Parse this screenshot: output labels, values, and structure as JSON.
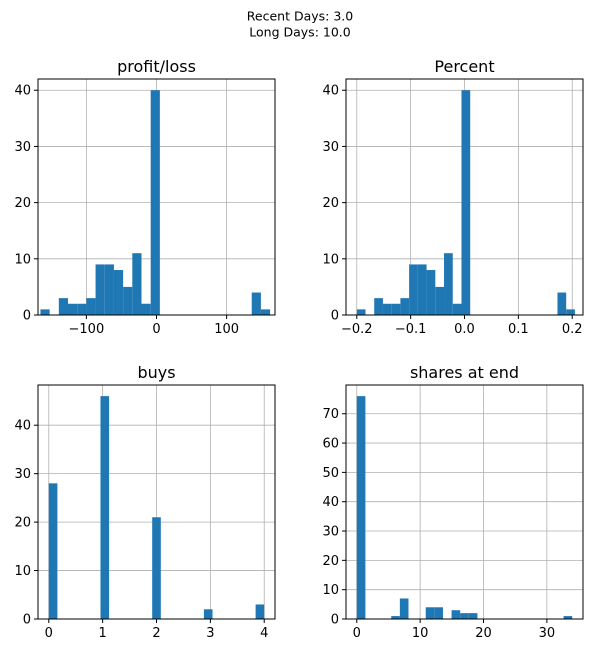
{
  "figure": {
    "suptitle_line1": "Recent Days: 3.0",
    "suptitle_line2": "Long Days: 10.0"
  },
  "colors": {
    "bar": "#1f77b4",
    "grid": "#b0b0b0",
    "axes": "#000000"
  },
  "chart_data": [
    {
      "type": "bar",
      "title": "profit/loss",
      "grid": true,
      "xlim": [
        -169,
        169
      ],
      "ylim": [
        0,
        42
      ],
      "xticks": [
        -100,
        0,
        100
      ],
      "xtick_labels": [
        "−100",
        "0",
        "100"
      ],
      "yticks": [
        0,
        10,
        20,
        30,
        40
      ],
      "ytick_labels": [
        "0",
        "10",
        "20",
        "30",
        "40"
      ],
      "bin_edges": [
        -165.5,
        -152.4,
        -139.3,
        -126.2,
        -113.1,
        -100.0,
        -86.9,
        -73.8,
        -60.7,
        -47.6,
        -34.5,
        -21.4,
        -8.3,
        4.8,
        17.9,
        31.0,
        44.1,
        57.2,
        70.3,
        83.4,
        96.5,
        109.6,
        122.7,
        135.8,
        148.9,
        162.0
      ],
      "counts": [
        1,
        0,
        3,
        2,
        2,
        3,
        9,
        9,
        8,
        5,
        11,
        2,
        40,
        0,
        0,
        0,
        0,
        0,
        0,
        0,
        0,
        0,
        0,
        4,
        1
      ]
    },
    {
      "type": "bar",
      "title": "Percent",
      "grid": true,
      "xlim": [
        -0.22,
        0.22
      ],
      "ylim": [
        0,
        42
      ],
      "xticks": [
        -0.2,
        -0.1,
        0.0,
        0.1,
        0.2
      ],
      "xtick_labels": [
        "−0.2",
        "−0.1",
        "0.0",
        "0.1",
        "0.2"
      ],
      "yticks": [
        0,
        10,
        20,
        30,
        40
      ],
      "ytick_labels": [
        "0",
        "10",
        "20",
        "30",
        "40"
      ],
      "bin_edges": [
        -0.2,
        -0.1838,
        -0.1676,
        -0.1514,
        -0.1352,
        -0.119,
        -0.1028,
        -0.0866,
        -0.0704,
        -0.0542,
        -0.038,
        -0.0218,
        -0.0056,
        0.0106,
        0.0268,
        0.043,
        0.0592,
        0.0754,
        0.0916,
        0.1078,
        0.124,
        0.1402,
        0.1564,
        0.1726,
        0.1888,
        0.205
      ],
      "counts": [
        1,
        0,
        3,
        2,
        2,
        3,
        9,
        9,
        8,
        5,
        11,
        2,
        40,
        0,
        0,
        0,
        0,
        0,
        0,
        0,
        0,
        0,
        0,
        4,
        1
      ]
    },
    {
      "type": "bar",
      "title": "buys",
      "grid": true,
      "xlim": [
        -0.2,
        4.2
      ],
      "ylim": [
        0,
        48.3
      ],
      "xticks": [
        0,
        1,
        2,
        3,
        4
      ],
      "xtick_labels": [
        "0",
        "1",
        "2",
        "3",
        "4"
      ],
      "yticks": [
        0,
        10,
        20,
        30,
        40
      ],
      "ytick_labels": [
        "0",
        "10",
        "20",
        "30",
        "40"
      ],
      "bin_edges": [
        0.0,
        0.16,
        0.32,
        0.48,
        0.64,
        0.8,
        0.96,
        1.12,
        1.28,
        1.44,
        1.6,
        1.76,
        1.92,
        2.08,
        2.24,
        2.4,
        2.56,
        2.72,
        2.88,
        3.04,
        3.2,
        3.36,
        3.52,
        3.68,
        3.84,
        4.0
      ],
      "counts": [
        28,
        0,
        0,
        0,
        0,
        0,
        46,
        0,
        0,
        0,
        0,
        0,
        21,
        0,
        0,
        0,
        0,
        0,
        2,
        0,
        0,
        0,
        0,
        0,
        3
      ]
    },
    {
      "type": "bar",
      "title": "shares at end",
      "grid": true,
      "xlim": [
        -1.7,
        35.7
      ],
      "ylim": [
        0,
        79.8
      ],
      "xticks": [
        0,
        10,
        20,
        30
      ],
      "xtick_labels": [
        "0",
        "10",
        "20",
        "30"
      ],
      "yticks": [
        0,
        10,
        20,
        30,
        40,
        50,
        60,
        70
      ],
      "ytick_labels": [
        "0",
        "10",
        "20",
        "30",
        "40",
        "50",
        "60",
        "70"
      ],
      "bin_edges": [
        0.0,
        1.36,
        2.72,
        4.08,
        5.44,
        6.8,
        8.16,
        9.52,
        10.88,
        12.24,
        13.6,
        14.96,
        16.32,
        17.68,
        19.04,
        20.4,
        21.76,
        23.12,
        24.48,
        25.84,
        27.2,
        28.56,
        29.92,
        31.28,
        32.64,
        34.0
      ],
      "counts": [
        76,
        0,
        0,
        0,
        1,
        7,
        0,
        0,
        4,
        4,
        0,
        3,
        2,
        2,
        0,
        0,
        0,
        0,
        0,
        0,
        0,
        0,
        0,
        0,
        1
      ]
    }
  ]
}
